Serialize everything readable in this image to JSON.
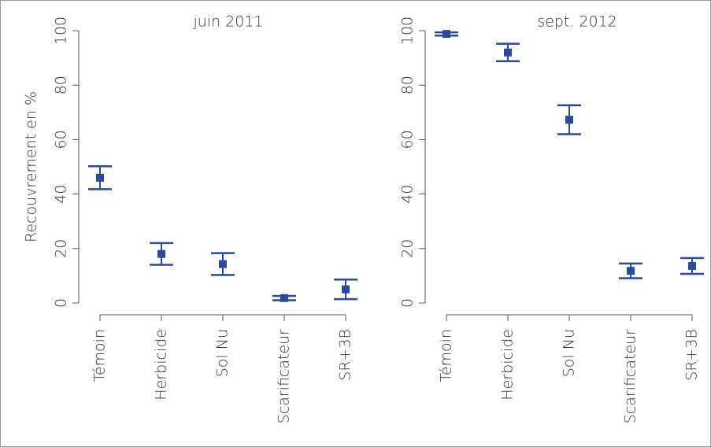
{
  "chart_data": [
    {
      "type": "errorbar",
      "title": "juin 2011",
      "y_label": "Recouvrement en %",
      "categories": [
        "Témoin",
        "Herbicide",
        "Sol Nu",
        "Scarificateur",
        "SR+3B"
      ],
      "values": [
        46,
        18,
        14.3,
        1.8,
        5
      ],
      "errors": [
        4.2,
        4,
        4,
        0.8,
        3.6
      ],
      "color": "#2a4b9b",
      "ylim": [
        0,
        100
      ],
      "yticks": [
        0,
        20,
        40,
        60,
        80,
        100
      ]
    },
    {
      "type": "errorbar",
      "title": "sept. 2012",
      "categories": [
        "Témoin",
        "Herbicide",
        "Sol Nu",
        "Scarificateur",
        "SR+3B"
      ],
      "values": [
        98.8,
        92,
        67.3,
        11.8,
        13.6
      ],
      "errors": [
        0.6,
        3.2,
        5.3,
        2.7,
        2.9
      ],
      "color": "#2a4b9b",
      "ylim": [
        0,
        100
      ],
      "yticks": [
        0,
        20,
        40,
        60,
        80,
        100
      ]
    }
  ]
}
